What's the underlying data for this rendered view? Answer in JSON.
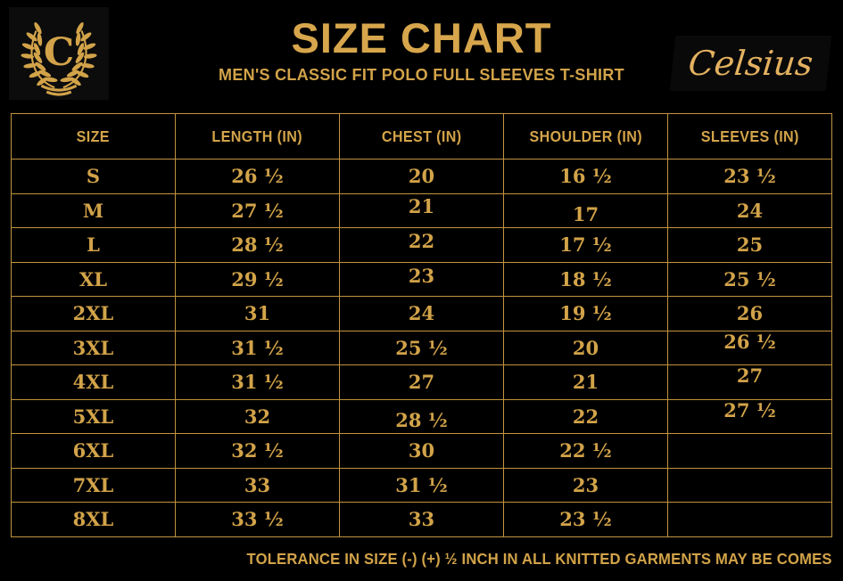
{
  "brand": {
    "logo_letter": "C",
    "name": "Celsius"
  },
  "header": {
    "title": "SIZE CHART",
    "subtitle": "MEN'S CLASSIC FIT POLO FULL SLEEVES T-SHIRT"
  },
  "colors": {
    "background": "#000000",
    "gold_text": "#D2A349",
    "gold_title": "#D7A64C",
    "gold_script": "#E3B160",
    "gold_border": "#C2943E"
  },
  "chart_data": {
    "type": "table",
    "title": "SIZE CHART",
    "subtitle": "MEN'S CLASSIC FIT POLO FULL SLEEVES T-SHIRT",
    "columns": [
      "SIZE",
      "LENGTH (IN)",
      "CHEST (IN)",
      "SHOULDER (IN)",
      "SLEEVES (IN)"
    ],
    "rows": [
      [
        "S",
        "26 ½",
        "20",
        "16 ½",
        "23 ½"
      ],
      [
        "M",
        "27 ½",
        "21",
        "17",
        "24"
      ],
      [
        "L",
        "28 ½",
        "22",
        "17 ½",
        "25"
      ],
      [
        "XL",
        "29 ½",
        "23",
        "18 ½",
        "25 ½"
      ],
      [
        "2XL",
        "31",
        "24",
        "19 ½",
        "26"
      ],
      [
        "3XL",
        "31 ½",
        "25 ½",
        "20",
        "26 ½"
      ],
      [
        "4XL",
        "31 ½",
        "27",
        "21",
        "27"
      ],
      [
        "5XL",
        "32",
        "28 ½",
        "22",
        "27 ½"
      ],
      [
        "6XL",
        "32 ½",
        "30",
        "22 ½",
        ""
      ],
      [
        "7XL",
        "33",
        "31 ½",
        "23",
        ""
      ],
      [
        "8XL",
        "33 ½",
        "33",
        "23 ½",
        ""
      ]
    ]
  },
  "footer": {
    "note": "TOLERANCE IN SIZE (-) (+)  ½ INCH IN ALL KNITTED GARMENTS MAY BE COMES"
  }
}
